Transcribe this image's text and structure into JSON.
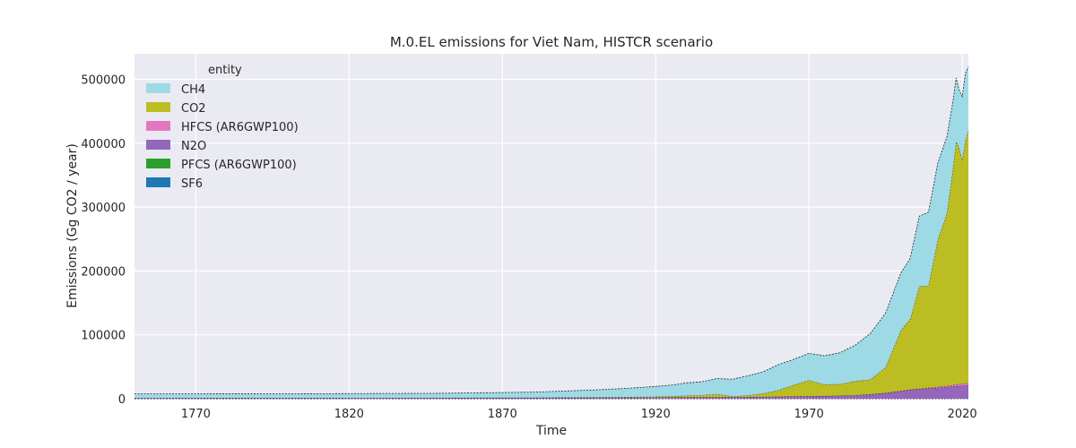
{
  "chart_data": {
    "type": "area",
    "title": "M.0.EL emissions for Viet Nam, HISTCR scenario",
    "xlabel": "Time",
    "ylabel": "Emissions (Gg CO2 / year)",
    "xlim": [
      1750,
      2022
    ],
    "ylim": [
      0,
      540000
    ],
    "xticks": [
      1770,
      1820,
      1870,
      1920,
      1970,
      2020
    ],
    "yticks": [
      0,
      100000,
      200000,
      300000,
      400000,
      500000
    ],
    "grid": true,
    "stacked": true,
    "legend": {
      "title": "entity",
      "placement": "top-left"
    },
    "x": [
      1750,
      1800,
      1850,
      1880,
      1900,
      1910,
      1920,
      1925,
      1930,
      1935,
      1940,
      1945,
      1950,
      1955,
      1960,
      1965,
      1970,
      1975,
      1980,
      1985,
      1990,
      1995,
      2000,
      2003,
      2006,
      2009,
      2012,
      2015,
      2017,
      2018,
      2019,
      2020,
      2021,
      2022
    ],
    "series": [
      {
        "name": "SF6",
        "color": "#1f77b4",
        "values": [
          0,
          0,
          0,
          0,
          0,
          0,
          0,
          0,
          0,
          0,
          0,
          0,
          0,
          0,
          0,
          0,
          0,
          0,
          0,
          0,
          10,
          20,
          30,
          40,
          50,
          60,
          80,
          100,
          120,
          130,
          140,
          150,
          160,
          170
        ]
      },
      {
        "name": "PFCS (AR6GWP100)",
        "color": "#2ca02c",
        "values": [
          0,
          0,
          0,
          0,
          0,
          0,
          0,
          0,
          0,
          0,
          0,
          0,
          0,
          0,
          0,
          0,
          0,
          0,
          0,
          0,
          10,
          20,
          30,
          40,
          50,
          60,
          70,
          80,
          90,
          100,
          100,
          100,
          100,
          100
        ]
      },
      {
        "name": "N2O",
        "color": "#9467bd",
        "values": [
          1000,
          1100,
          1300,
          1500,
          1700,
          1800,
          2000,
          2100,
          2300,
          2500,
          2600,
          2500,
          2800,
          3000,
          3300,
          3600,
          4000,
          4300,
          4800,
          5500,
          7000,
          9000,
          12000,
          14000,
          15000,
          16000,
          17000,
          18000,
          19000,
          19500,
          20000,
          20000,
          20500,
          21000
        ]
      },
      {
        "name": "HFCS (AR6GWP100)",
        "color": "#e377c2",
        "values": [
          0,
          0,
          0,
          0,
          0,
          0,
          0,
          0,
          0,
          0,
          0,
          0,
          0,
          0,
          0,
          0,
          0,
          0,
          0,
          0,
          0,
          50,
          200,
          400,
          700,
          1000,
          1500,
          2000,
          2300,
          2500,
          2700,
          2900,
          3100,
          3300
        ]
      },
      {
        "name": "CO2",
        "color": "#bcbd22",
        "values": [
          100,
          100,
          200,
          300,
          500,
          800,
          1200,
          1800,
          2500,
          3000,
          5000,
          1000,
          2500,
          5000,
          10000,
          18000,
          25000,
          18000,
          18000,
          22000,
          23000,
          40000,
          95000,
          110000,
          160000,
          160000,
          230000,
          270000,
          340000,
          380000,
          370000,
          350000,
          380000,
          395000
        ]
      },
      {
        "name": "CH4",
        "color": "#9edae5",
        "values": [
          6400,
          6500,
          7000,
          8500,
          11500,
          13500,
          16000,
          17300,
          20000,
          21000,
          24000,
          27000,
          30500,
          34000,
          40000,
          40000,
          42000,
          45000,
          49000,
          56000,
          72000,
          85000,
          90000,
          95000,
          110000,
          115000,
          120000,
          120000,
          105000,
          100000,
          90000,
          100000,
          105000,
          100000
        ]
      }
    ]
  }
}
